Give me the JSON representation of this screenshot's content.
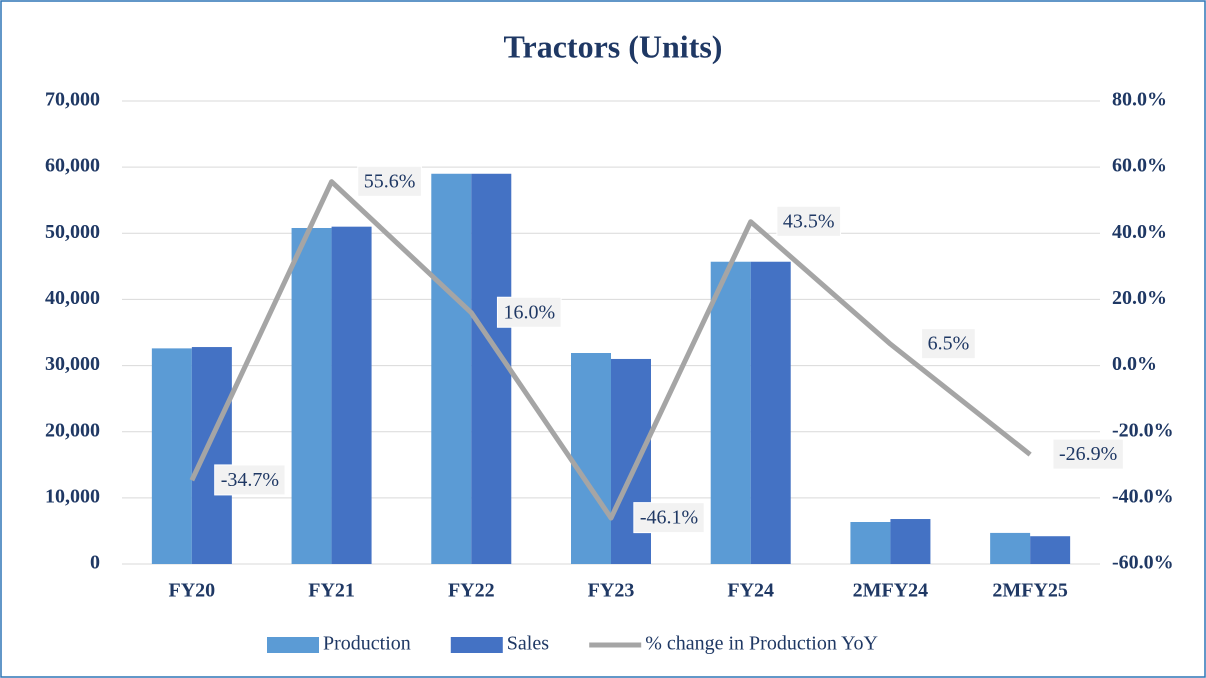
{
  "chart_data": {
    "type": "bar-line",
    "title": "Tractors (Units)",
    "categories": [
      "FY20",
      "FY21",
      "FY22",
      "FY23",
      "FY24",
      "2MFY24",
      "2MFY25"
    ],
    "series": [
      {
        "name": "Production",
        "type": "bar",
        "color": "#5b9bd5",
        "values": [
          32600,
          50800,
          59000,
          31900,
          45700,
          6350,
          4700
        ]
      },
      {
        "name": "Sales",
        "type": "bar",
        "color": "#4472c4",
        "values": [
          32800,
          51000,
          59000,
          31000,
          45700,
          6800,
          4200
        ]
      },
      {
        "name": "% change in Production YoY",
        "type": "line",
        "axis": "y2",
        "color": "#a5a5a5",
        "values": [
          -34.7,
          55.6,
          16.0,
          -46.1,
          43.5,
          6.5,
          -26.9
        ],
        "value_labels": [
          "-34.7%",
          "55.6%",
          "16.0%",
          "-46.1%",
          "43.5%",
          "6.5%",
          "-26.9%"
        ]
      }
    ],
    "ylim": [
      0,
      70000
    ],
    "yticks": [
      {
        "value": 0,
        "label": "0"
      },
      {
        "value": 10000,
        "label": "10,000"
      },
      {
        "value": 20000,
        "label": "20,000"
      },
      {
        "value": 30000,
        "label": "30,000"
      },
      {
        "value": 40000,
        "label": "40,000"
      },
      {
        "value": 50000,
        "label": "50,000"
      },
      {
        "value": 60000,
        "label": "60,000"
      },
      {
        "value": 70000,
        "label": "70,000"
      }
    ],
    "y2lim": [
      -60,
      80
    ],
    "y2ticks": [
      {
        "value": -60,
        "label": "-60.0%"
      },
      {
        "value": -40,
        "label": "-40.0%"
      },
      {
        "value": -20,
        "label": "-20.0%"
      },
      {
        "value": 0,
        "label": "0.0%"
      },
      {
        "value": 20,
        "label": "20.0%"
      },
      {
        "value": 40,
        "label": "40.0%"
      },
      {
        "value": 60,
        "label": "60.0%"
      },
      {
        "value": 80,
        "label": "80.0%"
      }
    ],
    "grid": true,
    "legend": "bottom"
  }
}
